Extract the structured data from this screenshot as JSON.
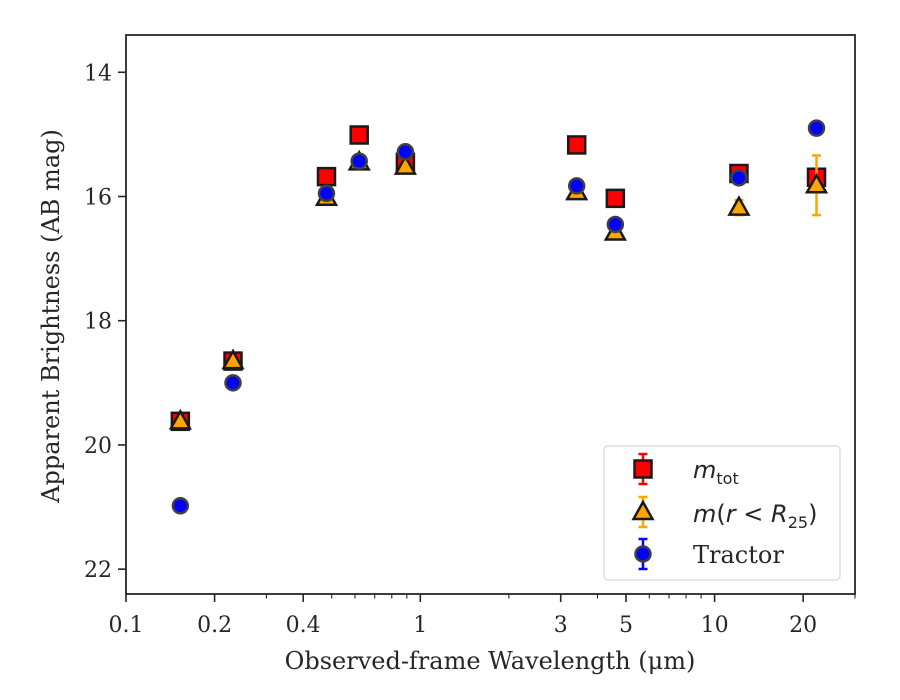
{
  "chart_data": {
    "type": "scatter",
    "xlabel": "Observed-frame Wavelength (μm)",
    "ylabel": "Apparent Brightness (AB mag)",
    "x_scale": "log",
    "xlim": [
      0.1,
      30
    ],
    "ylim": [
      22.4,
      13.4
    ],
    "y_inverted": true,
    "x_ticks": [
      0.1,
      0.2,
      0.4,
      1,
      3,
      5,
      10,
      20
    ],
    "x_tick_labels": [
      "0.1",
      "0.2",
      "0.4",
      "1",
      "3",
      "5",
      "10",
      "20"
    ],
    "y_ticks": [
      14,
      16,
      18,
      20,
      22
    ],
    "y_tick_labels": [
      "14",
      "16",
      "18",
      "20",
      "22"
    ],
    "legend_position": "lower right",
    "grid": false,
    "series": [
      {
        "name": "m_tot",
        "legend_label": "m_tot",
        "marker": "square",
        "color": "#ff0000",
        "edge_color": "#1a1a1a",
        "errorbar_color": "#ff0000",
        "points": [
          {
            "x": 0.153,
            "y": 19.62,
            "err": 0.06
          },
          {
            "x": 0.231,
            "y": 18.65,
            "err": 0.05
          },
          {
            "x": 0.48,
            "y": 15.68,
            "err": 0.03
          },
          {
            "x": 0.62,
            "y": 15.01,
            "err": 0.03
          },
          {
            "x": 0.89,
            "y": 15.45,
            "err": 0.03
          },
          {
            "x": 3.4,
            "y": 15.17,
            "err": 0.03
          },
          {
            "x": 4.6,
            "y": 16.03,
            "err": 0.03
          },
          {
            "x": 12.1,
            "y": 15.63,
            "err": 0.03
          },
          {
            "x": 22.2,
            "y": 15.69,
            "err": 0.04
          }
        ]
      },
      {
        "name": "m(r<R25)",
        "legend_label": "m(r < R25)",
        "marker": "triangle",
        "color": "#ffa500",
        "edge_color": "#1a1a1a",
        "errorbar_color": "#ffa500",
        "points": [
          {
            "x": 0.153,
            "y": 19.62,
            "err": 0.06
          },
          {
            "x": 0.231,
            "y": 18.65,
            "err": 0.05
          },
          {
            "x": 0.48,
            "y": 16.02,
            "err": 0.03
          },
          {
            "x": 0.62,
            "y": 15.45,
            "err": 0.03
          },
          {
            "x": 0.89,
            "y": 15.52,
            "err": 0.03
          },
          {
            "x": 3.4,
            "y": 15.93,
            "err": 0.04
          },
          {
            "x": 4.6,
            "y": 16.58,
            "err": 0.05
          },
          {
            "x": 12.1,
            "y": 16.18,
            "err": 0.12
          },
          {
            "x": 22.2,
            "y": 15.82,
            "err": 0.48
          }
        ]
      },
      {
        "name": "Tractor",
        "legend_label": "Tractor",
        "marker": "circle",
        "color": "#0000ff",
        "edge_color": "#404040",
        "errorbar_color": "#0000ff",
        "points": [
          {
            "x": 0.153,
            "y": 20.98,
            "err": 0.07
          },
          {
            "x": 0.231,
            "y": 19.0,
            "err": 0.05
          },
          {
            "x": 0.48,
            "y": 15.95,
            "err": 0.03
          },
          {
            "x": 0.62,
            "y": 15.43,
            "err": 0.03
          },
          {
            "x": 0.89,
            "y": 15.28,
            "err": 0.09
          },
          {
            "x": 3.4,
            "y": 15.83,
            "err": 0.04
          },
          {
            "x": 4.6,
            "y": 16.45,
            "err": 0.05
          },
          {
            "x": 12.1,
            "y": 15.7,
            "err": 0.05
          },
          {
            "x": 22.2,
            "y": 14.9,
            "err": 0.06
          }
        ]
      }
    ]
  }
}
